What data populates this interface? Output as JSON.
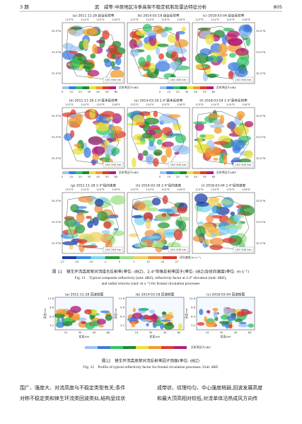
{
  "header": {
    "volume": "3 期",
    "title": "武　威等:中原地区冷季高架不稳定机制及雷达特征分析",
    "page": "805"
  },
  "figure11": {
    "panels": [
      "(a) 2011-11-28 组合反射率",
      "(b) 2014-03-18 组合反射率",
      "(c) 2018-03-04 组合反射率",
      "(d) 2011-11-28 2.4°基本反射率",
      "(e) 2014-03-18 2.4°基本反射率",
      "(f) 2018-03-04 2.4°基本反射率",
      "(g) 2011-11-28 2.4°径向速度",
      "(h) 2014-03-18 2.4°径向速度",
      "(i) 2018-03-04 2.4°径向速度"
    ],
    "lon_labels": [
      "113°E",
      "114°E",
      "115°E",
      "116°E"
    ],
    "lat_labels": [
      "34.5°N",
      "33.5°N",
      "32.5°N"
    ],
    "scale": "150 300 km",
    "reflectivity_colorbar": {
      "ticks": [
        "5",
        "15",
        "25",
        "35",
        "45",
        "55",
        "65"
      ],
      "title": "反射率因子/dBZ"
    },
    "velocity_colorbar": {
      "ticks": [
        "-27",
        "-20",
        "-10",
        "-1",
        "0",
        "1",
        "10",
        "20",
        "27"
      ],
      "title": "径向速度/(m·s⁻¹)"
    },
    "caption_cn": "图 11　锋生环流类高架对流组合反射率(单位: dBZ)、2.4°仰角反射率因子(单位: dBZ)及径向速度(单位: m·s⁻¹)",
    "caption_en": [
      "Fig. 11　Typical composite reflectivity (unit: dBZ), reflectivity factor at 2.4° elevation (unit: dBZ),",
      "and radial velocity (unit: m·s⁻¹) for frontal circulation processes"
    ]
  },
  "figure12": {
    "panels": [
      "(a) 2011-11-28 回波剖面",
      "(b) 2014-03-18 回波剖面",
      "(c) 2018-03-04 回波剖面"
    ],
    "y_label": "高度/km",
    "y_ticks": [
      "12.8",
      "9.6",
      "6.4",
      "3.2"
    ],
    "x_ticks": [
      "15",
      "30",
      "45",
      "60"
    ],
    "x_label": "距离/km",
    "colorbar_title": "反射率因子/dBZ",
    "caption_cn": "图12　锋生环流类高架对流反射率因子剖面(单位: dBZ)",
    "caption_en": "Fig. 12　Profile of typical reflectivity factor for frontal circulation processes. Unit: dBZ"
  },
  "body": {
    "left": [
      "围广、强度大、对流高度与不稳定类型有关;条件",
      "对称不稳定类和锋生环流类回波类似,结构呈纹状"
    ],
    "right": [
      "成带状、纹理均匀、中心强度稍弱,回波发展高度",
      "和最大顶高相对较低,对流单体沿热成风方向传"
    ]
  }
}
